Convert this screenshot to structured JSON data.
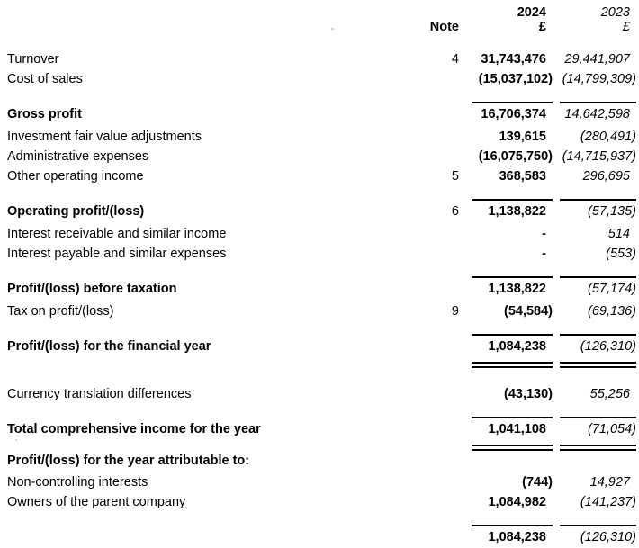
{
  "document": {
    "header": {
      "note_label": "Note",
      "year_current": "2024",
      "year_prior": "2023",
      "currency_current": "£",
      "currency_prior": "£"
    },
    "rows": [
      {
        "type": "item",
        "label": "Turnover",
        "note": "4",
        "current": "31,743,476",
        "prior": "29,441,907"
      },
      {
        "type": "item",
        "label": "Cost of sales",
        "note": "",
        "current": "(15,037,102)",
        "prior": "(14,799,309)"
      },
      {
        "type": "rule"
      },
      {
        "type": "total",
        "label": "Gross profit",
        "note": "",
        "current": "16,706,374",
        "prior": "14,642,598"
      },
      {
        "type": "item",
        "label": "Investment fair value adjustments",
        "note": "",
        "current": "139,615",
        "prior": "(280,491)"
      },
      {
        "type": "item",
        "label": "Administrative expenses",
        "note": "",
        "current": "(16,075,750)",
        "prior": "(14,715,937)"
      },
      {
        "type": "item",
        "label": "Other operating income",
        "note": "5",
        "current": "368,583",
        "prior": "296,695"
      },
      {
        "type": "rule"
      },
      {
        "type": "total",
        "label": "Operating profit/(loss)",
        "note": "6",
        "current": "1,138,822",
        "prior": "(57,135)"
      },
      {
        "type": "item",
        "label": "Interest receivable and similar income",
        "note": "",
        "current": "-",
        "prior": "514"
      },
      {
        "type": "item",
        "label": "Interest payable and similar expenses",
        "note": "",
        "current": "-",
        "prior": "(553)"
      },
      {
        "type": "rule"
      },
      {
        "type": "total",
        "label": "Profit/(loss) before taxation",
        "note": "",
        "current": "1,138,822",
        "prior": "(57,174)"
      },
      {
        "type": "item",
        "label": "Tax on profit/(loss)",
        "note": "9",
        "current": "(54,584)",
        "prior": "(69,136)"
      },
      {
        "type": "rule"
      },
      {
        "type": "total",
        "label": "Profit/(loss) for the financial year",
        "note": "",
        "current": "1,084,238",
        "prior": "(126,310)"
      },
      {
        "type": "double-rule"
      },
      {
        "type": "item",
        "label": "Currency translation differences",
        "note": "",
        "current": "(43,130)",
        "prior": "55,256"
      },
      {
        "type": "rule"
      },
      {
        "type": "total",
        "label": "Total comprehensive income for the year",
        "note": "",
        "current": "1,041,108",
        "prior": "(71,054)"
      },
      {
        "type": "double-rule"
      },
      {
        "type": "section",
        "label": "Profit/(loss) for the year attributable to:",
        "note": "",
        "current": "",
        "prior": ""
      },
      {
        "type": "item",
        "label": "Non-controlling interests",
        "note": "",
        "current": "(744)",
        "prior": "14,927"
      },
      {
        "type": "item",
        "label": "Owners of the parent company",
        "note": "",
        "current": "1,084,982",
        "prior": "(141,237)"
      },
      {
        "type": "rule"
      },
      {
        "type": "total",
        "label": "",
        "note": "",
        "current": "1,084,238",
        "prior": "(126,310)"
      }
    ]
  }
}
